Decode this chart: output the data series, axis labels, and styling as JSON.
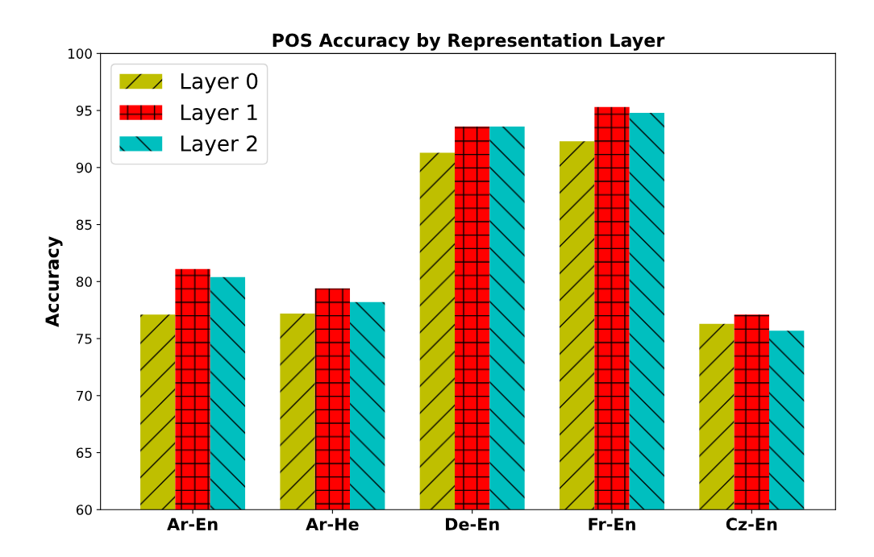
{
  "chart_data": {
    "type": "bar",
    "title": "POS Accuracy by Representation Layer",
    "ylabel": "Accuracy",
    "categories": [
      "Ar-En",
      "Ar-He",
      "De-En",
      "Fr-En",
      "Cz-En"
    ],
    "series": [
      {
        "name": "Layer 0",
        "color": "#bfbf00",
        "values": [
          77.1,
          77.2,
          91.3,
          92.3,
          76.3
        ]
      },
      {
        "name": "Layer 1",
        "color": "#ff0000",
        "values": [
          81.1,
          79.4,
          93.6,
          95.3,
          77.1
        ]
      },
      {
        "name": "Layer 2",
        "color": "#00bfbf",
        "values": [
          80.4,
          78.2,
          93.6,
          94.8,
          75.7
        ]
      }
    ],
    "ylim": [
      60,
      100
    ],
    "yticks": [
      60,
      65,
      70,
      75,
      80,
      85,
      90,
      95,
      100
    ],
    "grid": false,
    "legend": "top left"
  }
}
